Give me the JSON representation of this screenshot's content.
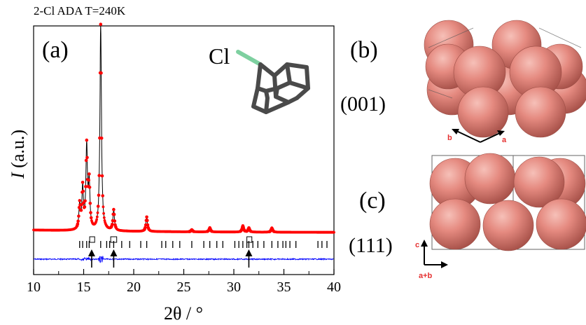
{
  "title": "2-Cl ADA T=240K",
  "panels": {
    "a": "(a)",
    "b": "(b)",
    "c": "(c)"
  },
  "planes": {
    "b": "(001)",
    "c": "(111)"
  },
  "molecule_label": "Cl",
  "axes_labels": {
    "b": {
      "left": "b",
      "right": "a"
    },
    "c": {
      "up": "c",
      "right": "a+b"
    }
  },
  "colors": {
    "observed": "#ff0000",
    "calc": "#000000",
    "diff": "#0000ff",
    "sphere": "#e58a80",
    "cl_bond": "#7ed0a0",
    "axis_red": "#e53030"
  },
  "chart_data": {
    "type": "line",
    "xlabel": "2θ / °",
    "ylabel": "I (a.u.)",
    "xlim": [
      10,
      40
    ],
    "xticks": [
      10,
      15,
      20,
      25,
      30,
      35,
      40
    ],
    "series": [
      {
        "role": "observed",
        "marker": "circle",
        "peaks": [
          {
            "x": 14.6,
            "h": 0.12
          },
          {
            "x": 14.9,
            "h": 0.2
          },
          {
            "x": 15.3,
            "h": 0.4
          },
          {
            "x": 15.55,
            "h": 0.22
          },
          {
            "x": 16.7,
            "h": 1.0
          },
          {
            "x": 18.0,
            "h": 0.1
          },
          {
            "x": 21.3,
            "h": 0.07
          },
          {
            "x": 25.8,
            "h": 0.01
          },
          {
            "x": 27.6,
            "h": 0.02
          },
          {
            "x": 30.9,
            "h": 0.03
          },
          {
            "x": 31.5,
            "h": 0.02
          },
          {
            "x": 33.8,
            "h": 0.02
          }
        ]
      },
      {
        "role": "calculated"
      },
      {
        "role": "difference"
      }
    ],
    "bragg_ticks": [
      14.6,
      14.9,
      15.3,
      15.55,
      16.7,
      17.3,
      17.6,
      18.0,
      18.8,
      19.6,
      20.7,
      21.3,
      22.8,
      23.2,
      23.9,
      24.6,
      25.8,
      27.0,
      27.6,
      28.3,
      28.9,
      30.1,
      30.5,
      30.9,
      31.3,
      31.5,
      31.9,
      32.4,
      33.0,
      33.8,
      34.4,
      34.9,
      35.2,
      35.6,
      36.2,
      38.4,
      38.8,
      39.3
    ],
    "excluded_regions": [
      [
        15.6,
        16.1
      ],
      [
        17.7,
        18.3
      ],
      [
        31.3,
        31.8
      ]
    ],
    "arrows_at": [
      15.8,
      18.0,
      31.5
    ]
  }
}
